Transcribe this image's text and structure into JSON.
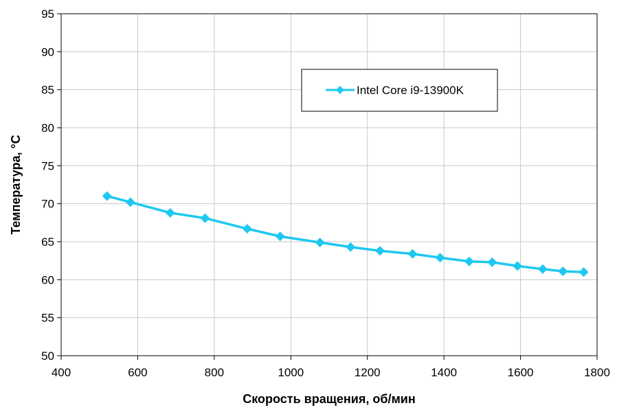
{
  "chart_data": {
    "type": "line",
    "title": "",
    "xlabel": "Скорость вращения, об/мин",
    "ylabel": "Температура, °C",
    "xlim": [
      400,
      1800
    ],
    "ylim": [
      50,
      95
    ],
    "xticks": [
      400,
      600,
      800,
      1000,
      1200,
      1400,
      1600,
      1800
    ],
    "yticks": [
      50,
      55,
      60,
      65,
      70,
      75,
      80,
      85,
      90,
      95
    ],
    "grid": true,
    "legend_position": "top-right",
    "series": [
      {
        "name": "Intel Core i9-13900K",
        "color": "#1ec8f0",
        "marker": "diamond",
        "x": [
          520,
          581,
          685,
          776,
          886,
          972,
          1076,
          1156,
          1233,
          1318,
          1390,
          1466,
          1526,
          1592,
          1658,
          1711,
          1765
        ],
        "y": [
          71.0,
          70.2,
          68.8,
          68.1,
          66.7,
          65.7,
          64.9,
          64.3,
          63.8,
          63.4,
          62.9,
          62.4,
          62.3,
          61.8,
          61.4,
          61.1,
          61.0
        ]
      }
    ]
  }
}
